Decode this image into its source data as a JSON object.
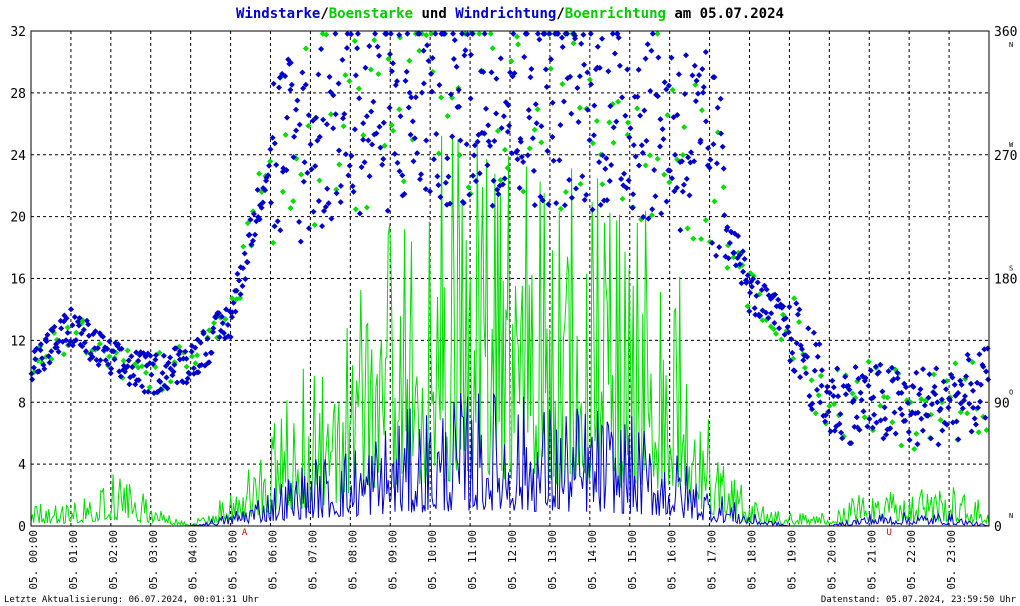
{
  "title": {
    "parts": [
      {
        "text": "Windstarke",
        "color": "#0000cc"
      },
      {
        "text": "/",
        "color": "#000000"
      },
      {
        "text": "Boenstarke",
        "color": "#00cc00"
      },
      {
        "text": " und ",
        "color": "#000000"
      },
      {
        "text": "Windrichtung",
        "color": "#0000cc"
      },
      {
        "text": "/",
        "color": "#000000"
      },
      {
        "text": "Boenrichtung",
        "color": "#00cc00"
      },
      {
        "text": " am 05.07.2024",
        "color": "#000000"
      }
    ]
  },
  "footer": {
    "left": "Letzte Aktualisierung: 06.07.2024, 00:01:31 Uhr",
    "right": "Datenstand: 05.07.2024, 23:59:50 Uhr"
  },
  "colors": {
    "wind": "#0000cc",
    "gust": "#00dd00",
    "grid": "#000000",
    "axis": "#000000",
    "sun_marker": "#cc0000"
  },
  "chart_data": {
    "type": "line",
    "xlabel": "",
    "ylabel": "",
    "y_left": {
      "min": 0,
      "max": 32,
      "ticks": [
        "0",
        "4",
        "8",
        "12",
        "16",
        "20",
        "24",
        "28",
        "32"
      ]
    },
    "y_right": {
      "min": 0,
      "max": 360,
      "ticks": [
        "0",
        "90",
        "180",
        "270",
        "360"
      ],
      "compass": [
        "N",
        "O",
        "S",
        "W",
        "N"
      ]
    },
    "x_ticks": [
      "05. 00:00",
      "05. 01:00",
      "05. 02:00",
      "05. 03:00",
      "05. 04:00",
      "05. 05:00",
      "05. 06:00",
      "05. 07:00",
      "05. 08:00",
      "05. 09:00",
      "05. 10:00",
      "05. 11:00",
      "05. 12:00",
      "05. 13:00",
      "05. 14:00",
      "05. 15:00",
      "05. 16:00",
      "05. 17:00",
      "05. 18:00",
      "05. 19:00",
      "05. 20:00",
      "05. 21:00",
      "05. 22:00",
      "05. 23:00"
    ],
    "markers": [
      {
        "label": "A",
        "hour": 5.35
      },
      {
        "label": "U",
        "hour": 21.5
      }
    ],
    "grid": true,
    "series": [
      {
        "name": "Windstarke",
        "color": "#0000cc",
        "kind": "speed",
        "hours": [
          0,
          1,
          2,
          3,
          4,
          5,
          6,
          7,
          8,
          9,
          10,
          11,
          12,
          13,
          14,
          15,
          16,
          17,
          18,
          19,
          20,
          21,
          22,
          23,
          24
        ],
        "values": [
          0,
          0,
          0,
          0,
          0,
          0.5,
          1.5,
          2.5,
          3,
          4,
          4.5,
          5,
          5,
          4.5,
          4.5,
          4,
          3,
          1.5,
          0.5,
          0,
          0,
          0.5,
          0.5,
          0.5,
          0
        ]
      },
      {
        "name": "Boenstarke",
        "color": "#00dd00",
        "kind": "speed",
        "hours": [
          0,
          1,
          2,
          3,
          4,
          5,
          6,
          7,
          8,
          9,
          10,
          11,
          12,
          13,
          14,
          15,
          16,
          17,
          18,
          19,
          20,
          21,
          22,
          23,
          24
        ],
        "values": [
          0.8,
          0.8,
          2,
          1,
          0,
          1.5,
          4,
          6,
          8,
          12,
          14,
          15,
          15,
          13,
          13,
          12,
          11,
          4,
          1,
          0.5,
          0.5,
          1.5,
          1.5,
          1.5,
          0.8
        ]
      },
      {
        "name": "Windrichtung",
        "color": "#0000cc",
        "kind": "direction",
        "hours": [
          0,
          1,
          2,
          3,
          4,
          5,
          6,
          7,
          8,
          9,
          10,
          11,
          12,
          13,
          14,
          15,
          16,
          17,
          18,
          19,
          20,
          21,
          22,
          23,
          24
        ],
        "values": [
          115,
          145,
          120,
          110,
          120,
          150,
          270,
          280,
          300,
          300,
          305,
          305,
          310,
          305,
          305,
          300,
          290,
          270,
          170,
          145,
          90,
          90,
          85,
          90,
          100
        ]
      },
      {
        "name": "Boenrichtung",
        "color": "#00dd00",
        "kind": "direction",
        "hours": [
          0,
          1,
          2,
          3,
          4,
          5,
          6,
          7,
          8,
          9,
          10,
          11,
          12,
          13,
          14,
          15,
          16,
          17,
          18,
          19,
          20,
          21,
          22,
          23,
          24
        ],
        "values": [
          115,
          145,
          120,
          110,
          120,
          150,
          280,
          285,
          300,
          300,
          305,
          305,
          310,
          305,
          305,
          300,
          290,
          270,
          170,
          145,
          90,
          90,
          85,
          90,
          100
        ]
      }
    ]
  }
}
